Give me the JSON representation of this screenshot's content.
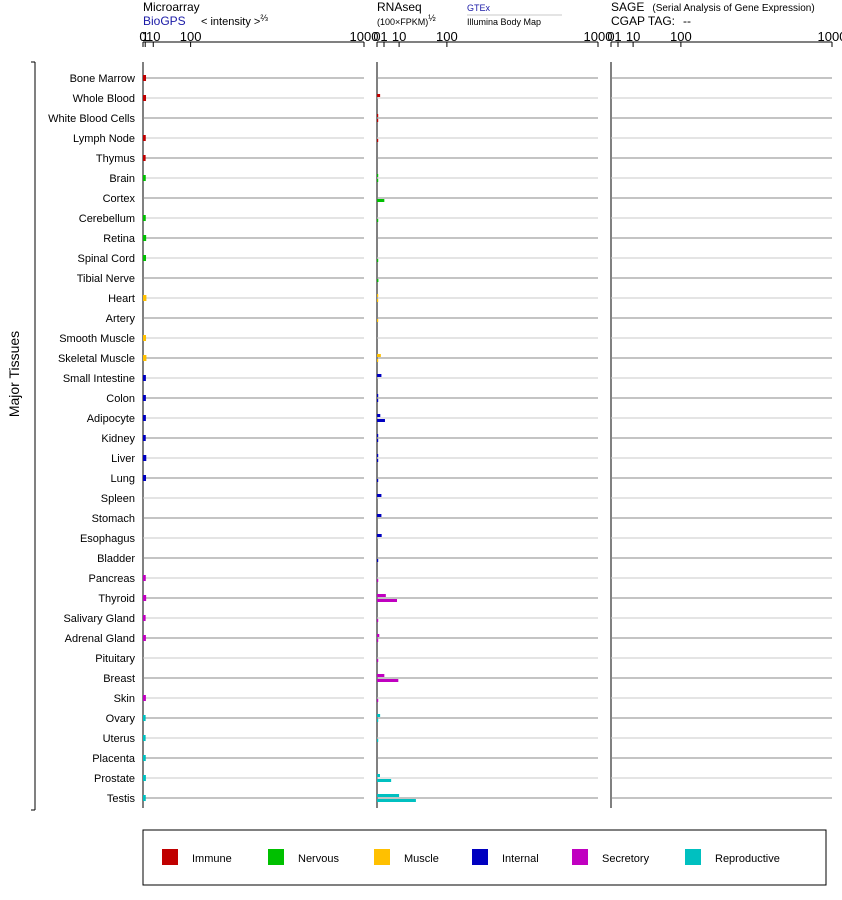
{
  "panels": {
    "microarray": {
      "title": "Microarray",
      "source": "BioGPS",
      "unit_text": "< intensity >",
      "unit_exp": "⅔",
      "ticks": [
        "0",
        "1",
        "10",
        "100",
        "1000"
      ]
    },
    "rnaseq": {
      "title": "RNAseq",
      "unit_text": "(100×FPKM)",
      "unit_exp": "½",
      "series_1": "GTEx",
      "series_2": "Illumina Body Map",
      "ticks": [
        "0",
        "1",
        "10",
        "100",
        "1000"
      ]
    },
    "sage": {
      "title": "SAGE",
      "subtitle": "(Serial Analysis of Gene Expression)",
      "tag_label": "CGAP TAG:",
      "tag_value": "--",
      "ticks": [
        "0",
        "1",
        "10",
        "100",
        "1000"
      ]
    }
  },
  "group_label": "Major Tissues",
  "colors": {
    "Immune": "#c00000",
    "Nervous": "#00c000",
    "Muscle": "#ffc000",
    "Internal": "#0000c0",
    "Secretory": "#c000c0",
    "Reproductive": "#00c0c0"
  },
  "legend": [
    "Immune",
    "Nervous",
    "Muscle",
    "Internal",
    "Secretory",
    "Reproductive"
  ],
  "chart_data": {
    "type": "bar",
    "x_scale": "power-root",
    "x_ticks": [
      0,
      1,
      10,
      100,
      1000
    ],
    "categories": [
      "Bone Marrow",
      "Whole Blood",
      "White Blood Cells",
      "Lymph Node",
      "Thymus",
      "Brain",
      "Cortex",
      "Cerebellum",
      "Retina",
      "Spinal Cord",
      "Tibial Nerve",
      "Heart",
      "Artery",
      "Smooth Muscle",
      "Skeletal Muscle",
      "Small Intestine",
      "Colon",
      "Adipocyte",
      "Kidney",
      "Liver",
      "Lung",
      "Spleen",
      "Stomach",
      "Esophagus",
      "Bladder",
      "Pancreas",
      "Thyroid",
      "Salivary Gland",
      "Adrenal Gland",
      "Pituitary",
      "Breast",
      "Skin",
      "Ovary",
      "Uterus",
      "Placenta",
      "Prostate",
      "Testis"
    ],
    "category_groups": [
      "Immune",
      "Immune",
      "Immune",
      "Immune",
      "Immune",
      "Nervous",
      "Nervous",
      "Nervous",
      "Nervous",
      "Nervous",
      "Nervous",
      "Muscle",
      "Muscle",
      "Muscle",
      "Muscle",
      "Internal",
      "Internal",
      "Internal",
      "Internal",
      "Internal",
      "Internal",
      "Internal",
      "Internal",
      "Internal",
      "Internal",
      "Secretory",
      "Secretory",
      "Secretory",
      "Secretory",
      "Secretory",
      "Secretory",
      "Secretory",
      "Reproductive",
      "Reproductive",
      "Reproductive",
      "Reproductive",
      "Reproductive"
    ],
    "series": [
      {
        "panel": "microarray",
        "values": [
          1.6,
          1.6,
          null,
          1.4,
          1.3,
          1.4,
          null,
          1.4,
          1.7,
          1.6,
          null,
          1.9,
          null,
          1.6,
          1.9,
          1.5,
          1.5,
          1.5,
          1.4,
          1.8,
          1.6,
          null,
          null,
          null,
          null,
          1.4,
          1.7,
          1.3,
          1.5,
          null,
          null,
          1.5,
          1.3,
          1.3,
          1.4,
          1.5,
          1.4
        ]
      },
      {
        "panel": "rnaseq",
        "name": "GTEx",
        "values": [
          null,
          0.2,
          0.03,
          null,
          null,
          0.03,
          null,
          null,
          null,
          null,
          null,
          0.01,
          null,
          null,
          0.3,
          0.4,
          0.03,
          0.22,
          0.03,
          0.03,
          null,
          0.4,
          0.4,
          0.45,
          null,
          null,
          1.6,
          null,
          0.11,
          null,
          1.1,
          null,
          0.2,
          null,
          null,
          0.18,
          10
        ]
      },
      {
        "panel": "rnaseq",
        "name": "Illumina Body Map",
        "values": [
          null,
          null,
          0.03,
          0.03,
          null,
          0.03,
          1.1,
          0.03,
          null,
          0.03,
          0.04,
          0.01,
          0.01,
          null,
          0.01,
          null,
          0.03,
          1.3,
          0.03,
          0.03,
          0.03,
          null,
          null,
          null,
          0.03,
          0.03,
          8.2,
          0.01,
          0.01,
          0.03,
          9.3,
          0.03,
          0.01,
          0.01,
          null,
          4.1,
          31
        ]
      }
    ]
  }
}
